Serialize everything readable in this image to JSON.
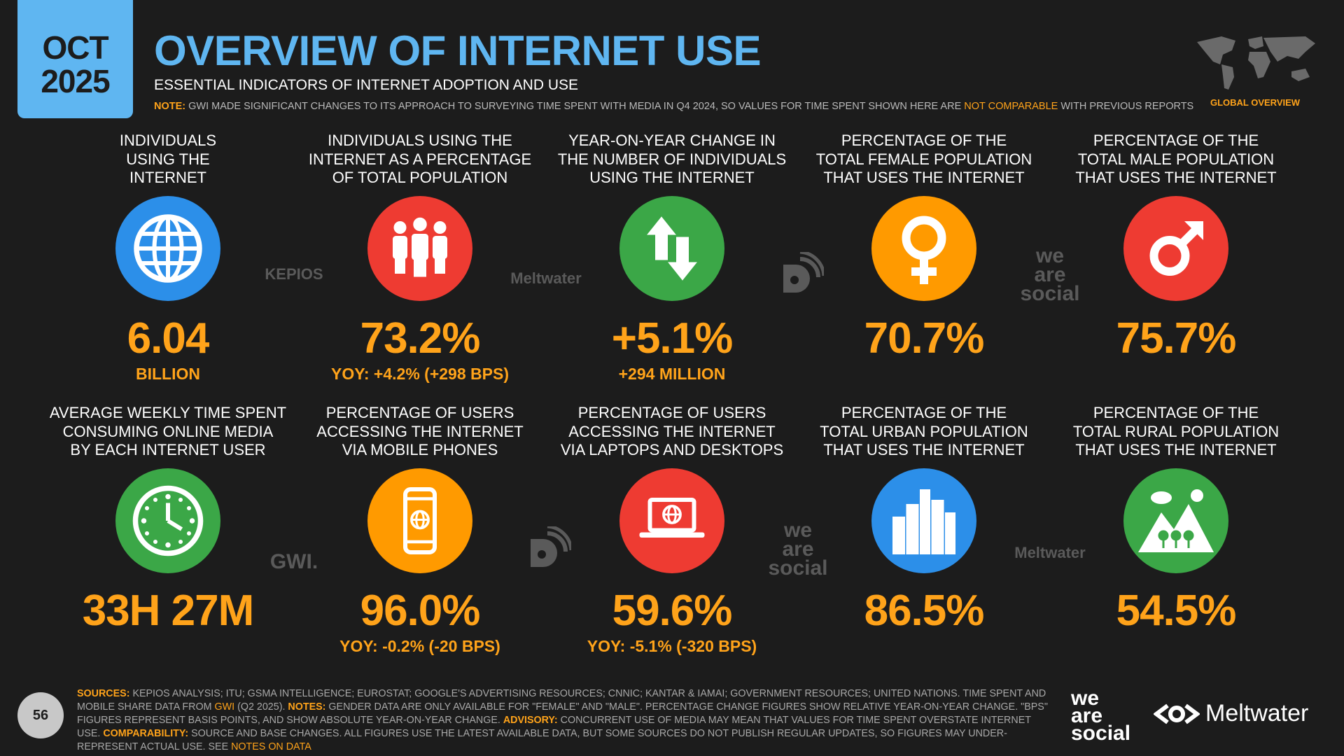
{
  "header": {
    "date_month": "OCT",
    "date_year": "2025",
    "title": "OVERVIEW OF INTERNET USE",
    "subtitle": "ESSENTIAL INDICATORS OF INTERNET ADOPTION AND USE",
    "note_label": "NOTE:",
    "note_text": "GWI MADE SIGNIFICANT CHANGES TO ITS APPROACH TO SURVEYING TIME SPENT WITH MEDIA IN Q4 2024, SO VALUES FOR TIME SPENT SHOWN HERE ARE",
    "note_highlight": "NOT COMPARABLE",
    "note_end": "WITH PREVIOUS REPORTS",
    "region": "GLOBAL OVERVIEW"
  },
  "tiles": [
    {
      "label": [
        "INDIVIDUALS",
        "USING THE",
        "INTERNET"
      ],
      "value": "6.04",
      "sub": "BILLION"
    },
    {
      "label": [
        "INDIVIDUALS USING THE",
        "INTERNET AS A PERCENTAGE",
        "OF TOTAL POPULATION"
      ],
      "value": "73.2%",
      "sub": "YOY: +4.2% (+298 BPS)"
    },
    {
      "label": [
        "YEAR-ON-YEAR CHANGE IN",
        "THE NUMBER OF INDIVIDUALS",
        "USING THE INTERNET"
      ],
      "value": "+5.1%",
      "sub": "+294 MILLION"
    },
    {
      "label": [
        "PERCENTAGE OF THE",
        "TOTAL FEMALE POPULATION",
        "THAT USES THE INTERNET"
      ],
      "value": "70.7%"
    },
    {
      "label": [
        "PERCENTAGE OF THE",
        "TOTAL MALE POPULATION",
        "THAT USES THE INTERNET"
      ],
      "value": "75.7%"
    },
    {
      "label": [
        "AVERAGE WEEKLY TIME SPENT",
        "CONSUMING ONLINE MEDIA",
        "BY EACH INTERNET USER"
      ],
      "value": "33H 27M"
    },
    {
      "label": [
        "PERCENTAGE OF USERS",
        "ACCESSING THE INTERNET",
        "VIA MOBILE PHONES"
      ],
      "value": "96.0%",
      "sub": "YOY: -0.2% (-20 BPS)"
    },
    {
      "label": [
        "PERCENTAGE OF USERS",
        "ACCESSING THE INTERNET",
        "VIA LAPTOPS AND DESKTOPS"
      ],
      "value": "59.6%",
      "sub": "YOY: -5.1% (-320 BPS)"
    },
    {
      "label": [
        "PERCENTAGE OF THE",
        "TOTAL URBAN POPULATION",
        "THAT USES THE INTERNET"
      ],
      "value": "86.5%"
    },
    {
      "label": [
        "PERCENTAGE OF THE",
        "TOTAL RURAL POPULATION",
        "THAT USES THE INTERNET"
      ],
      "value": "54.5%"
    }
  ],
  "watermarks": [
    [
      "KEPIOS"
    ],
    [
      "Meltwater"
    ],
    [
      "we",
      "are",
      "social"
    ],
    [
      "GWI."
    ],
    [
      "we",
      "are",
      "social"
    ],
    [
      "Meltwater"
    ]
  ],
  "footer": {
    "page_number": "56",
    "sources_label": "SOURCES:",
    "sources_text": "KEPIOS ANALYSIS; ITU; GSMA INTELLIGENCE; EUROSTAT; GOOGLE'S ADVERTISING RESOURCES; CNNIC; KANTAR & IAMAI; GOVERNMENT RESOURCES; UNITED NATIONS. TIME SPENT AND MOBILE SHARE DATA FROM",
    "gwi_link": "GWI",
    "sources_end": "(Q2 2025).",
    "notes_label": "NOTES:",
    "notes_text": "GENDER DATA ARE ONLY AVAILABLE FOR \"FEMALE\" AND \"MALE\". PERCENTAGE CHANGE FIGURES SHOW RELATIVE YEAR-ON-YEAR CHANGE. \"BPS\" FIGURES REPRESENT BASIS POINTS, AND SHOW ABSOLUTE YEAR-ON-YEAR CHANGE.",
    "advisory_label": "ADVISORY:",
    "advisory_text": "CONCURRENT USE OF MEDIA MAY MEAN THAT VALUES FOR TIME SPENT OVERSTATE INTERNET USE.",
    "comparability_label": "COMPARABILITY:",
    "comparability_text": "SOURCE AND BASE CHANGES. ALL FIGURES USE THE LATEST AVAILABLE DATA, BUT SOME SOURCES DO NOT PUBLISH REGULAR UPDATES, SO FIGURES MAY UNDER-REPRESENT ACTUAL USE. SEE",
    "notes_link": "NOTES ON DATA",
    "logo_wearesocial": [
      "we",
      "are",
      "social"
    ],
    "logo_meltwater": "Meltwater"
  }
}
